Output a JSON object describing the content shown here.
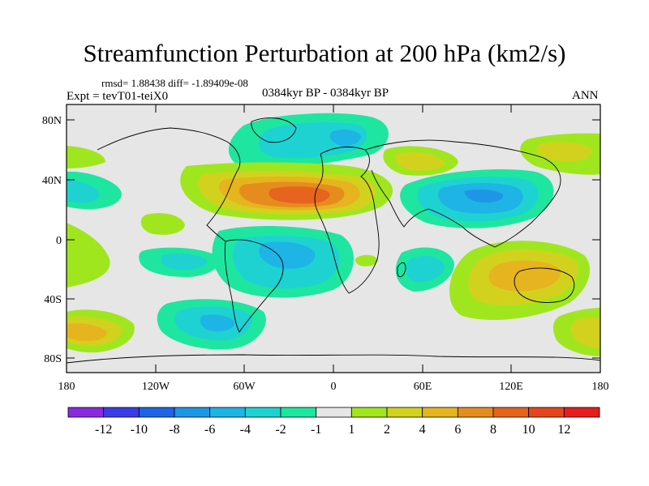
{
  "title": "Streamfunction Perturbation at 200 hPa (km2/s)",
  "stats": "rmsd= 1.88438  diff= -1.89409e-08",
  "expt": "Expt = tevT01-teiX0",
  "period": "0384kyr BP - 0384kyr BP",
  "season": "ANN",
  "lat_labels": [
    "80N",
    "40N",
    "0",
    "40S",
    "80S"
  ],
  "lon_labels": [
    "180",
    "120W",
    "60W",
    "0",
    "60E",
    "120E",
    "180"
  ],
  "colorbar": {
    "colors": [
      "#8a2be2",
      "#3c3ce6",
      "#1e64e6",
      "#1e96e6",
      "#1eb4e6",
      "#1ed2d2",
      "#1ee6a0",
      "#e6e6e6",
      "#a0e61e",
      "#d2d21e",
      "#e6b41e",
      "#e68c1e",
      "#e6641e",
      "#e6461e",
      "#e61e1e"
    ],
    "labels": [
      "-12",
      "-10",
      "-8",
      "-6",
      "-4",
      "-2",
      "-1",
      "1",
      "2",
      "4",
      "6",
      "8",
      "10",
      "12"
    ]
  },
  "anomalies": [
    {
      "name": "anomaly-arctic-atlantic-negative",
      "color": "#1eb4e6"
    },
    {
      "name": "anomaly-north-atlantic-positive",
      "color": "#e6641e"
    },
    {
      "name": "anomaly-asia-negative",
      "color": "#1e96e6"
    },
    {
      "name": "anomaly-south-america-negative",
      "color": "#1eb4e6"
    },
    {
      "name": "anomaly-south-indian-negative",
      "color": "#1ed2d2"
    },
    {
      "name": "anomaly-southwest-pacific-positive",
      "color": "#d2d21e"
    },
    {
      "name": "anomaly-south-pacific-positive",
      "color": "#e6b41e"
    }
  ]
}
